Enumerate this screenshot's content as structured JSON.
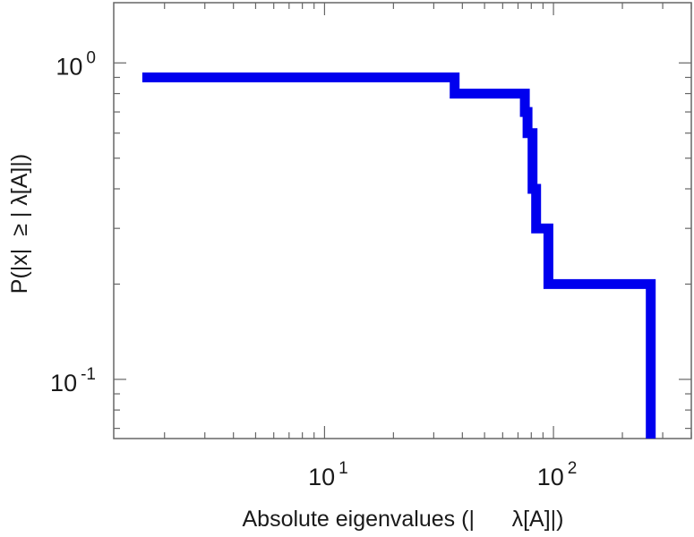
{
  "chart_data": {
    "type": "line",
    "step": true,
    "xscale": "log",
    "yscale": "log",
    "xlim": [
      1.2,
      400
    ],
    "ylim": [
      0.065,
      1.55
    ],
    "xlabel": "Absolute eigenvalues (|      λ[A]|)",
    "ylabel": "P(|x|  ≥ | λ[A]|)",
    "xticks": [
      {
        "base": "10",
        "exp": "1",
        "value": 10
      },
      {
        "base": "10",
        "exp": "2",
        "value": 100
      }
    ],
    "yticks": [
      {
        "base": "10",
        "exp": "0",
        "value": 1
      },
      {
        "base": "10",
        "exp": "-1",
        "value": 0.1
      }
    ],
    "series": [
      {
        "color": "#0000ee",
        "points": [
          [
            1.6,
            0.9
          ],
          [
            37,
            0.9
          ],
          [
            37,
            0.8
          ],
          [
            75,
            0.8
          ],
          [
            75,
            0.7
          ],
          [
            77,
            0.7
          ],
          [
            77,
            0.6
          ],
          [
            81,
            0.6
          ],
          [
            81,
            0.4
          ],
          [
            84,
            0.4
          ],
          [
            84,
            0.3
          ],
          [
            95,
            0.3
          ],
          [
            95,
            0.2
          ],
          [
            266,
            0.2
          ],
          [
            266,
            0.065
          ]
        ]
      }
    ],
    "grid": false,
    "legend": "none"
  }
}
